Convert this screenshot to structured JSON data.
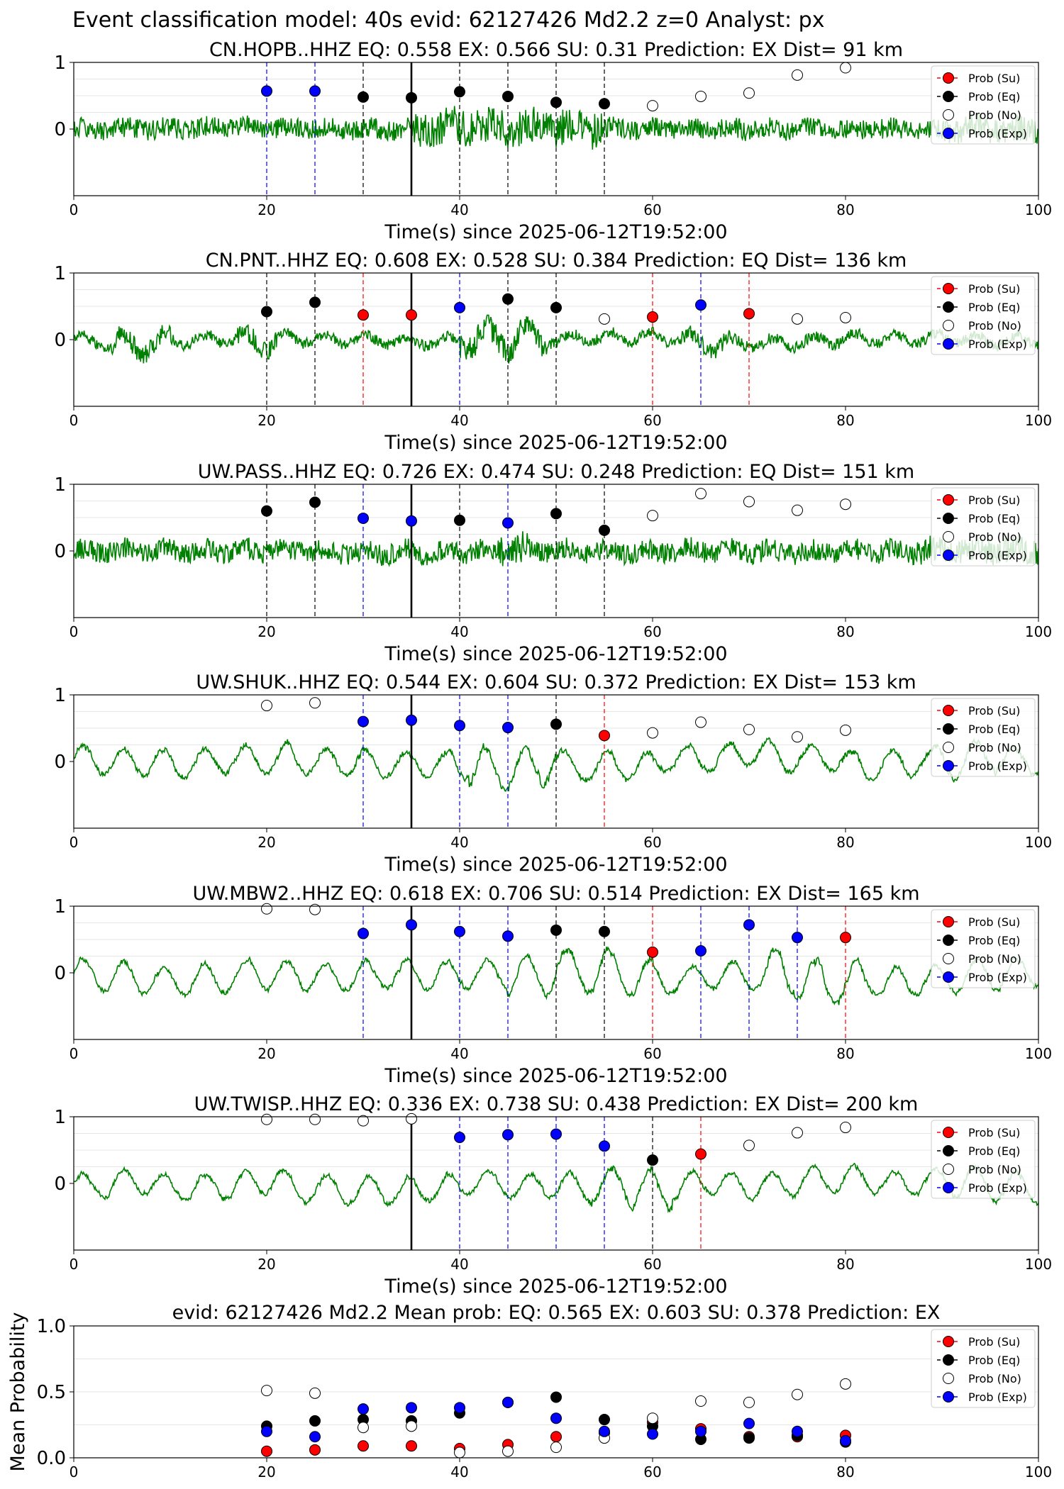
{
  "figure_title": "Event classification model: 40s evid: 62127426 Md2.2 z=0 Analyst: px",
  "legend_labels": [
    "Prob (Su)",
    "Prob (Eq)",
    "Prob (No)",
    "Prob (Exp)"
  ],
  "colors": {
    "su": "#ff0000",
    "eq": "#000000",
    "no": "#ffffff",
    "exp": "#0000ff",
    "waveform": "#008000"
  },
  "chart_data": [
    {
      "type": "line",
      "station": "CN.HOPB..HHZ",
      "title": "CN.HOPB..HHZ   EQ: 0.558  EX: 0.566  SU: 0.31   Prediction: EX    Dist= 91 km",
      "xlabel": "Time(s) since 2025-06-12T19:52:00",
      "xlim": [
        0,
        100
      ],
      "ylim": [
        -1,
        1
      ],
      "xticks": [
        "0",
        "20",
        "40",
        "60",
        "80",
        "100"
      ],
      "yticks": [
        "1",
        "0"
      ],
      "onset_time": 35,
      "windows": [
        {
          "t": 20,
          "cls": "exp",
          "p": 0.57
        },
        {
          "t": 25,
          "cls": "exp",
          "p": 0.57
        },
        {
          "t": 30,
          "cls": "eq",
          "p": 0.48
        },
        {
          "t": 35,
          "cls": "eq",
          "p": 0.47
        },
        {
          "t": 40,
          "cls": "eq",
          "p": 0.56
        },
        {
          "t": 45,
          "cls": "eq",
          "p": 0.49
        },
        {
          "t": 50,
          "cls": "eq",
          "p": 0.4
        },
        {
          "t": 55,
          "cls": "eq",
          "p": 0.38
        },
        {
          "t": 60,
          "cls": "no",
          "p": 0.35
        },
        {
          "t": 65,
          "cls": "no",
          "p": 0.49
        },
        {
          "t": 70,
          "cls": "no",
          "p": 0.54
        },
        {
          "t": 75,
          "cls": "no",
          "p": 0.81
        },
        {
          "t": 80,
          "cls": "no",
          "p": 0.92
        }
      ]
    },
    {
      "type": "line",
      "station": "CN.PNT..HHZ",
      "title": "CN.PNT..HHZ   EQ: 0.608  EX: 0.528  SU: 0.384   Prediction: EQ    Dist= 136 km",
      "xlabel": "Time(s) since 2025-06-12T19:52:00",
      "xlim": [
        0,
        100
      ],
      "ylim": [
        -1,
        1
      ],
      "xticks": [
        "0",
        "20",
        "40",
        "60",
        "80",
        "100"
      ],
      "yticks": [
        "1",
        "0"
      ],
      "onset_time": 35,
      "windows": [
        {
          "t": 20,
          "cls": "eq",
          "p": 0.42
        },
        {
          "t": 25,
          "cls": "eq",
          "p": 0.56
        },
        {
          "t": 30,
          "cls": "su",
          "p": 0.37
        },
        {
          "t": 35,
          "cls": "su",
          "p": 0.37
        },
        {
          "t": 40,
          "cls": "exp",
          "p": 0.48
        },
        {
          "t": 45,
          "cls": "eq",
          "p": 0.61
        },
        {
          "t": 50,
          "cls": "eq",
          "p": 0.48
        },
        {
          "t": 55,
          "cls": "no",
          "p": 0.31
        },
        {
          "t": 60,
          "cls": "su",
          "p": 0.34
        },
        {
          "t": 65,
          "cls": "exp",
          "p": 0.52
        },
        {
          "t": 70,
          "cls": "su",
          "p": 0.39
        },
        {
          "t": 75,
          "cls": "no",
          "p": 0.31
        },
        {
          "t": 80,
          "cls": "no",
          "p": 0.33
        }
      ]
    },
    {
      "type": "line",
      "station": "UW.PASS..HHZ",
      "title": "UW.PASS..HHZ   EQ: 0.726  EX: 0.474  SU: 0.248   Prediction: EQ    Dist= 151 km",
      "xlabel": "Time(s) since 2025-06-12T19:52:00",
      "xlim": [
        0,
        100
      ],
      "ylim": [
        -1,
        1
      ],
      "xticks": [
        "0",
        "20",
        "40",
        "60",
        "80",
        "100"
      ],
      "yticks": [
        "1",
        "0"
      ],
      "onset_time": 35,
      "windows": [
        {
          "t": 20,
          "cls": "eq",
          "p": 0.6
        },
        {
          "t": 25,
          "cls": "eq",
          "p": 0.73
        },
        {
          "t": 30,
          "cls": "exp",
          "p": 0.49
        },
        {
          "t": 35,
          "cls": "exp",
          "p": 0.45
        },
        {
          "t": 40,
          "cls": "eq",
          "p": 0.46
        },
        {
          "t": 45,
          "cls": "exp",
          "p": 0.42
        },
        {
          "t": 50,
          "cls": "eq",
          "p": 0.56
        },
        {
          "t": 55,
          "cls": "eq",
          "p": 0.31
        },
        {
          "t": 60,
          "cls": "no",
          "p": 0.53
        },
        {
          "t": 65,
          "cls": "no",
          "p": 0.86
        },
        {
          "t": 70,
          "cls": "no",
          "p": 0.74
        },
        {
          "t": 75,
          "cls": "no",
          "p": 0.61
        },
        {
          "t": 80,
          "cls": "no",
          "p": 0.7
        }
      ]
    },
    {
      "type": "line",
      "station": "UW.SHUK..HHZ",
      "title": "UW.SHUK..HHZ   EQ: 0.544  EX: 0.604  SU: 0.372   Prediction: EX    Dist= 153 km",
      "xlabel": "Time(s) since 2025-06-12T19:52:00",
      "xlim": [
        0,
        100
      ],
      "ylim": [
        -1,
        1
      ],
      "xticks": [
        "0",
        "20",
        "40",
        "60",
        "80",
        "100"
      ],
      "yticks": [
        "1",
        "0"
      ],
      "onset_time": 35,
      "windows": [
        {
          "t": 20,
          "cls": "no",
          "p": 0.84
        },
        {
          "t": 25,
          "cls": "no",
          "p": 0.88
        },
        {
          "t": 30,
          "cls": "exp",
          "p": 0.6
        },
        {
          "t": 35,
          "cls": "exp",
          "p": 0.62
        },
        {
          "t": 40,
          "cls": "exp",
          "p": 0.54
        },
        {
          "t": 45,
          "cls": "exp",
          "p": 0.51
        },
        {
          "t": 50,
          "cls": "eq",
          "p": 0.56
        },
        {
          "t": 55,
          "cls": "su",
          "p": 0.39
        },
        {
          "t": 60,
          "cls": "no",
          "p": 0.43
        },
        {
          "t": 65,
          "cls": "no",
          "p": 0.59
        },
        {
          "t": 70,
          "cls": "no",
          "p": 0.48
        },
        {
          "t": 75,
          "cls": "no",
          "p": 0.37
        },
        {
          "t": 80,
          "cls": "no",
          "p": 0.47
        }
      ]
    },
    {
      "type": "line",
      "station": "UW.MBW2..HHZ",
      "title": "UW.MBW2..HHZ   EQ: 0.618  EX: 0.706  SU: 0.514   Prediction: EX    Dist= 165 km",
      "xlabel": "Time(s) since 2025-06-12T19:52:00",
      "xlim": [
        0,
        100
      ],
      "ylim": [
        -1,
        1
      ],
      "xticks": [
        "0",
        "20",
        "40",
        "60",
        "80",
        "100"
      ],
      "yticks": [
        "1",
        "0"
      ],
      "onset_time": 35,
      "windows": [
        {
          "t": 20,
          "cls": "no",
          "p": 0.96
        },
        {
          "t": 25,
          "cls": "no",
          "p": 0.95
        },
        {
          "t": 30,
          "cls": "exp",
          "p": 0.59
        },
        {
          "t": 35,
          "cls": "exp",
          "p": 0.72
        },
        {
          "t": 40,
          "cls": "exp",
          "p": 0.62
        },
        {
          "t": 45,
          "cls": "exp",
          "p": 0.55
        },
        {
          "t": 50,
          "cls": "eq",
          "p": 0.64
        },
        {
          "t": 55,
          "cls": "eq",
          "p": 0.62
        },
        {
          "t": 60,
          "cls": "su",
          "p": 0.31
        },
        {
          "t": 65,
          "cls": "exp",
          "p": 0.33
        },
        {
          "t": 70,
          "cls": "exp",
          "p": 0.72
        },
        {
          "t": 75,
          "cls": "exp",
          "p": 0.53
        },
        {
          "t": 80,
          "cls": "su",
          "p": 0.53
        }
      ]
    },
    {
      "type": "line",
      "station": "UW.TWISP..HHZ",
      "title": "UW.TWISP..HHZ   EQ: 0.336  EX: 0.738  SU: 0.438   Prediction: EX    Dist= 200 km",
      "xlabel": "Time(s) since 2025-06-12T19:52:00",
      "xlim": [
        0,
        100
      ],
      "ylim": [
        -1,
        1
      ],
      "xticks": [
        "0",
        "20",
        "40",
        "60",
        "80",
        "100"
      ],
      "yticks": [
        "1",
        "0"
      ],
      "onset_time": 35,
      "windows": [
        {
          "t": 20,
          "cls": "no",
          "p": 0.96
        },
        {
          "t": 25,
          "cls": "no",
          "p": 0.96
        },
        {
          "t": 30,
          "cls": "no",
          "p": 0.94
        },
        {
          "t": 35,
          "cls": "no",
          "p": 0.97
        },
        {
          "t": 40,
          "cls": "exp",
          "p": 0.69
        },
        {
          "t": 45,
          "cls": "exp",
          "p": 0.73
        },
        {
          "t": 50,
          "cls": "exp",
          "p": 0.74
        },
        {
          "t": 55,
          "cls": "exp",
          "p": 0.56
        },
        {
          "t": 60,
          "cls": "eq",
          "p": 0.35
        },
        {
          "t": 65,
          "cls": "su",
          "p": 0.44
        },
        {
          "t": 70,
          "cls": "no",
          "p": 0.57
        },
        {
          "t": 75,
          "cls": "no",
          "p": 0.76
        },
        {
          "t": 80,
          "cls": "no",
          "p": 0.84
        }
      ]
    },
    {
      "type": "scatter",
      "title": "evid: 62127426  Md2.2   Mean prob:   EQ: 0.565  EX: 0.603  SU: 0.378   Prediction: EX",
      "ylabel": "Mean Probability",
      "xlim": [
        0,
        100
      ],
      "ylim": [
        0,
        1
      ],
      "xticks": [
        "0",
        "20",
        "40",
        "60",
        "80",
        "100"
      ],
      "yticks": [
        "1.0",
        "0.5",
        "0.0"
      ],
      "x": [
        20,
        25,
        30,
        35,
        40,
        45,
        50,
        55,
        60,
        65,
        70,
        75,
        80
      ],
      "series": [
        {
          "name": "Prob (Su)",
          "key": "su",
          "values": [
            0.05,
            0.06,
            0.09,
            0.09,
            0.07,
            0.1,
            0.16,
            0.19,
            0.27,
            0.22,
            0.16,
            0.16,
            0.17
          ]
        },
        {
          "name": "Prob (Eq)",
          "key": "eq",
          "values": [
            0.24,
            0.28,
            0.29,
            0.28,
            0.34,
            0.42,
            0.46,
            0.29,
            0.24,
            0.14,
            0.15,
            0.17,
            0.12
          ]
        },
        {
          "name": "Prob (No)",
          "key": "no",
          "values": [
            0.51,
            0.49,
            0.23,
            0.24,
            0.04,
            0.05,
            0.08,
            0.15,
            0.3,
            0.43,
            0.42,
            0.48,
            0.56
          ]
        },
        {
          "name": "Prob (Exp)",
          "key": "exp",
          "values": [
            0.2,
            0.16,
            0.37,
            0.38,
            0.38,
            0.42,
            0.3,
            0.2,
            0.18,
            0.2,
            0.26,
            0.2,
            0.13
          ]
        }
      ]
    }
  ]
}
